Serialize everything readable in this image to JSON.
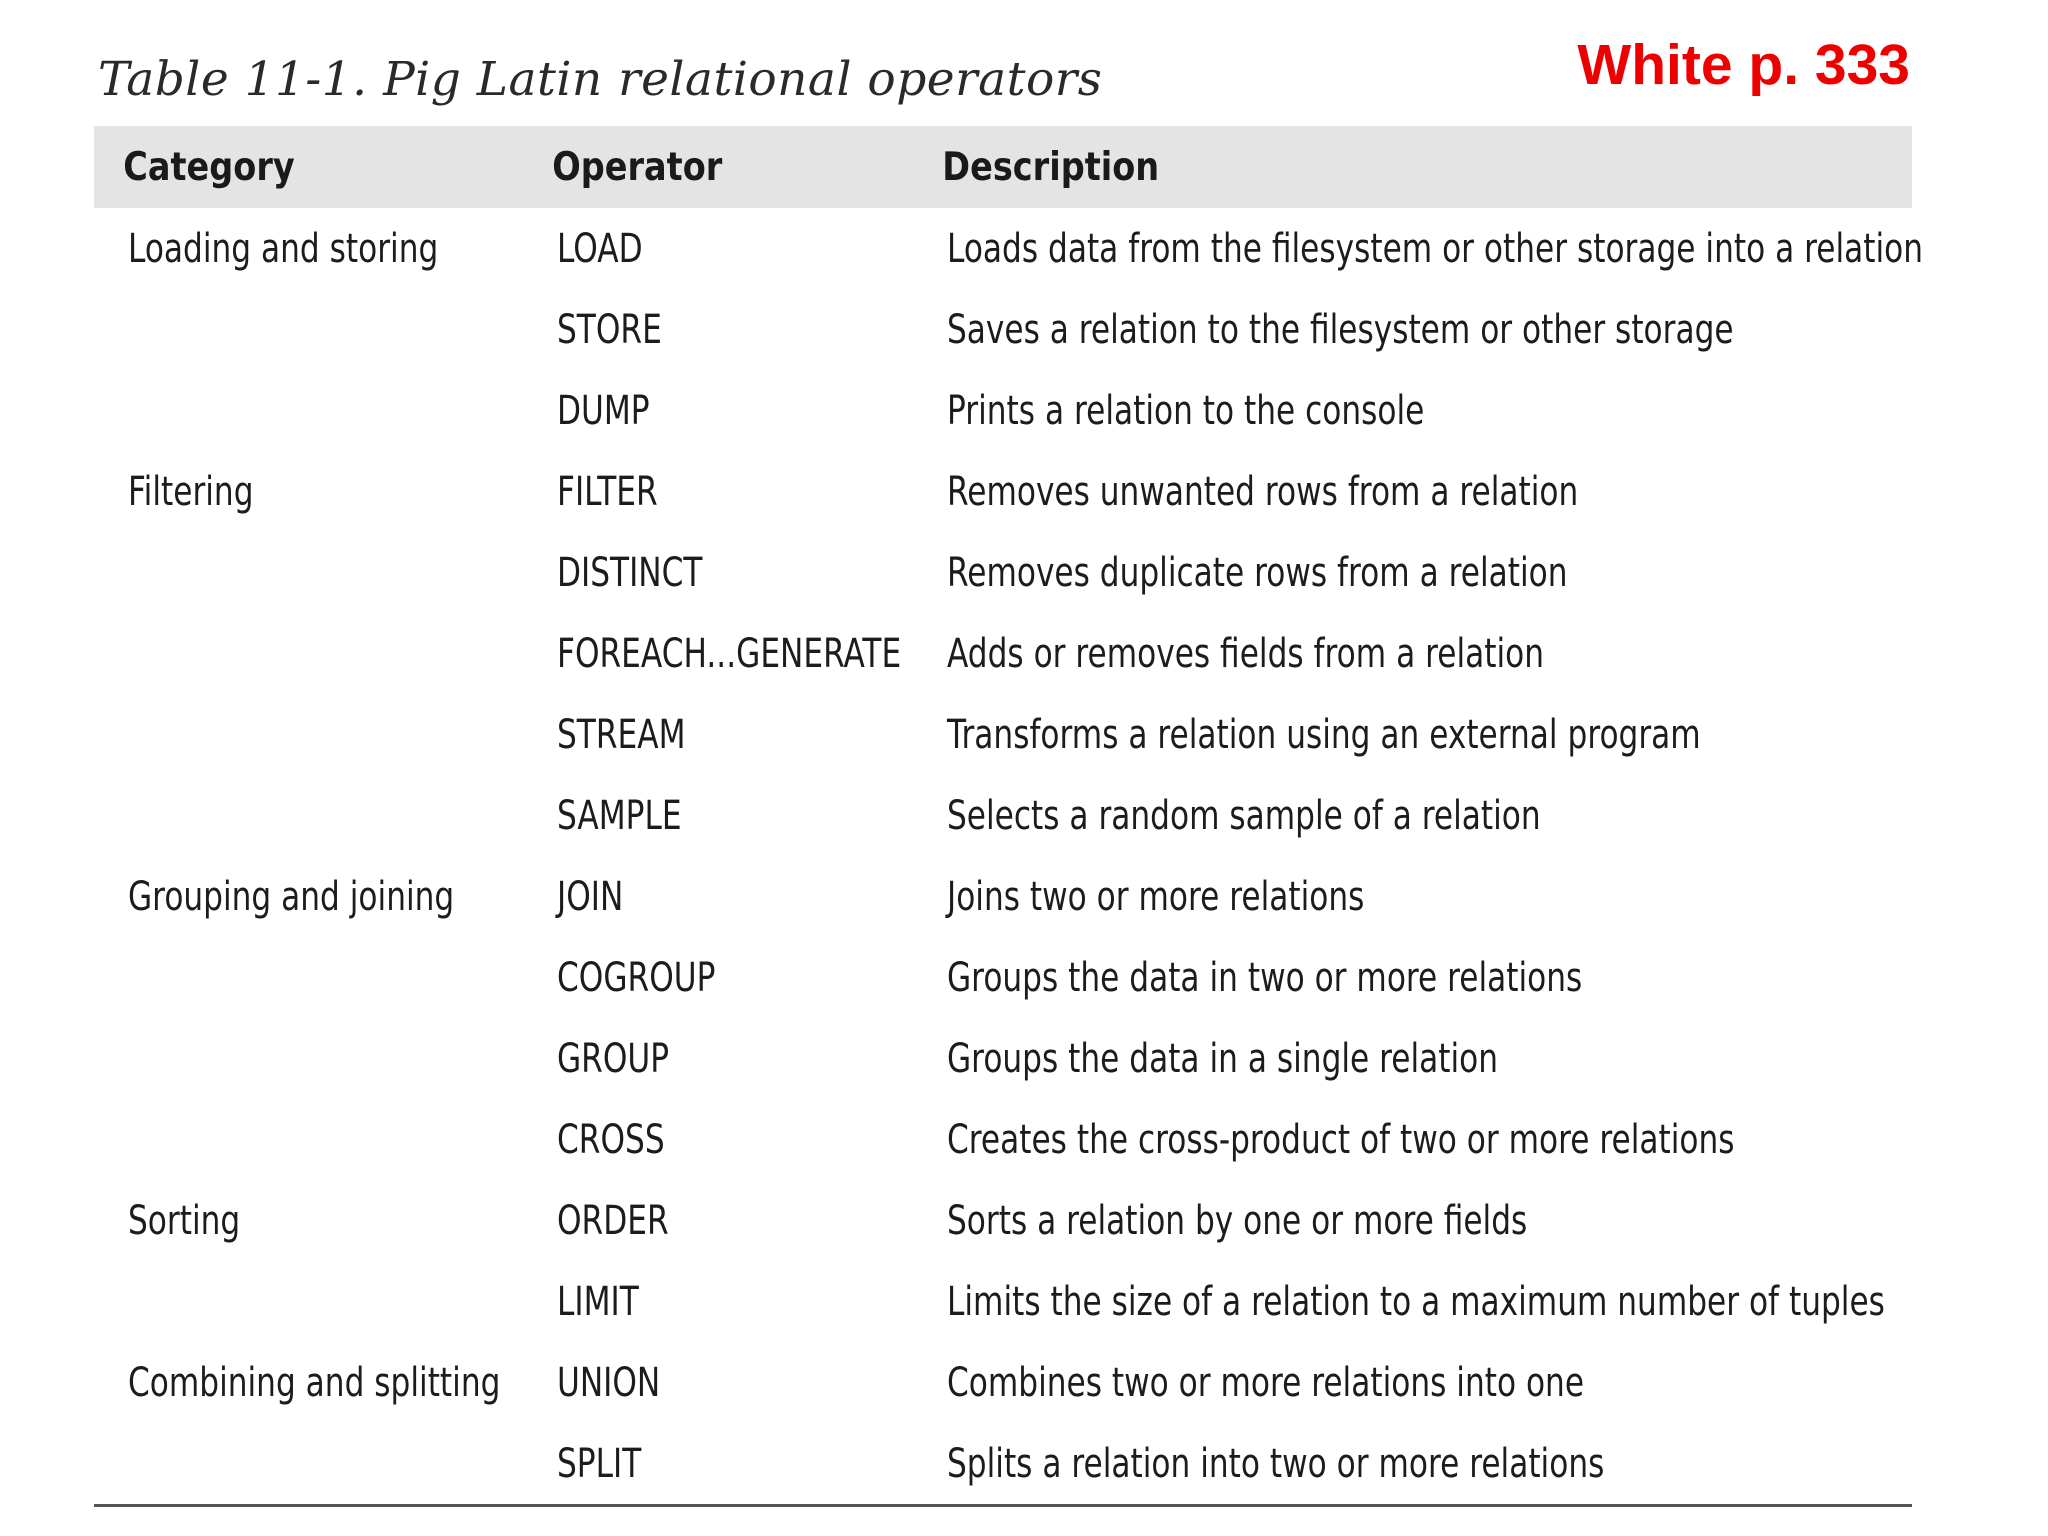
{
  "caption": "Table 11-1. Pig Latin relational operators",
  "page_ref": "White p. 333",
  "table": {
    "headers": {
      "category": "Category",
      "operator": "Operator",
      "description": "Description"
    },
    "rows": [
      {
        "category": "Loading and storing",
        "operator": "LOAD",
        "description": "Loads data from the filesystem or other storage into a relation"
      },
      {
        "category": "",
        "operator": "STORE",
        "description": "Saves a relation to the filesystem or other storage"
      },
      {
        "category": "",
        "operator": "DUMP",
        "description": "Prints a relation to the console"
      },
      {
        "category": "Filtering",
        "operator": "FILTER",
        "description": "Removes unwanted rows from a relation"
      },
      {
        "category": "",
        "operator": "DISTINCT",
        "description": "Removes duplicate rows from a relation"
      },
      {
        "category": "",
        "operator": "FOREACH...GENERATE",
        "description": "Adds or removes fields from a relation"
      },
      {
        "category": "",
        "operator": "STREAM",
        "description": "Transforms a relation using an external program"
      },
      {
        "category": "",
        "operator": "SAMPLE",
        "description": "Selects a random sample of a relation"
      },
      {
        "category": "Grouping and joining",
        "operator": "JOIN",
        "description": "Joins two or more relations"
      },
      {
        "category": "",
        "operator": "COGROUP",
        "description": "Groups the data in two or more relations"
      },
      {
        "category": "",
        "operator": "GROUP",
        "description": "Groups the data in a single relation"
      },
      {
        "category": "",
        "operator": "CROSS",
        "description": "Creates the cross-product of two or more relations"
      },
      {
        "category": "Sorting",
        "operator": "ORDER",
        "description": "Sorts a relation by one or more fields"
      },
      {
        "category": "",
        "operator": "LIMIT",
        "description": "Limits the size of a relation to a maximum number of tuples"
      },
      {
        "category": "Combining and splitting",
        "operator": "UNION",
        "description": "Combines two or more relations into one"
      },
      {
        "category": "",
        "operator": "SPLIT",
        "description": "Splits a relation into two or more relations"
      }
    ]
  },
  "colors": {
    "page_ref": "#ee0000",
    "header_background": "#e4e4e4",
    "text": "#1a1a1a"
  }
}
